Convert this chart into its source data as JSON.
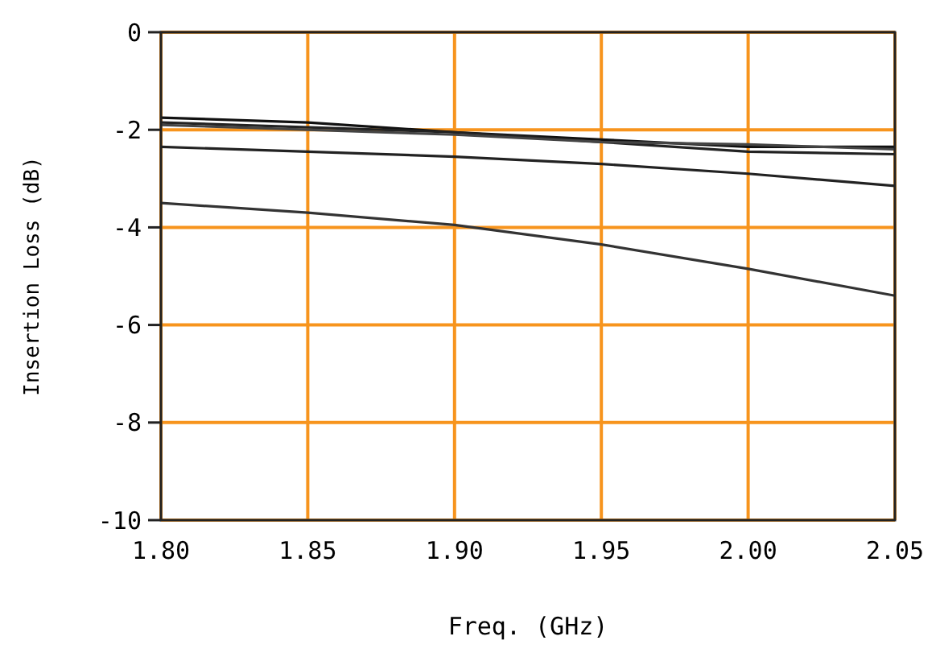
{
  "chart_data": {
    "type": "line",
    "xlabel": "Freq. (GHz)",
    "ylabel": "Insertion Loss (dB)",
    "x": [
      1.8,
      1.85,
      1.9,
      1.95,
      2.0,
      2.05
    ],
    "series": [
      {
        "color": "#111111",
        "values": [
          -1.75,
          -1.85,
          -2.05,
          -2.2,
          -2.35,
          -2.35
        ]
      },
      {
        "color": "#222222",
        "values": [
          -1.85,
          -1.95,
          -2.05,
          -2.25,
          -2.45,
          -2.5
        ]
      },
      {
        "color": "#444444",
        "values": [
          -1.9,
          -2.0,
          -2.1,
          -2.25,
          -2.3,
          -2.4
        ]
      },
      {
        "color": "#222222",
        "values": [
          -2.35,
          -2.45,
          -2.55,
          -2.7,
          -2.9,
          -3.15
        ]
      },
      {
        "color": "#333333",
        "values": [
          -3.5,
          -3.7,
          -3.95,
          -4.35,
          -4.85,
          -5.4
        ]
      }
    ],
    "xlim": [
      1.8,
      2.05
    ],
    "ylim": [
      -10,
      0
    ],
    "xticks": [
      {
        "value": 1.8,
        "label": "1.80"
      },
      {
        "value": 1.85,
        "label": "1.85"
      },
      {
        "value": 1.9,
        "label": "1.90"
      },
      {
        "value": 1.95,
        "label": "1.95"
      },
      {
        "value": 2.0,
        "label": "2.00"
      },
      {
        "value": 2.05,
        "label": "2.05"
      }
    ],
    "yticks": [
      0,
      -2,
      -4,
      -6,
      -8,
      -10
    ],
    "grid": true,
    "line_style": "solid",
    "marker": "none"
  }
}
